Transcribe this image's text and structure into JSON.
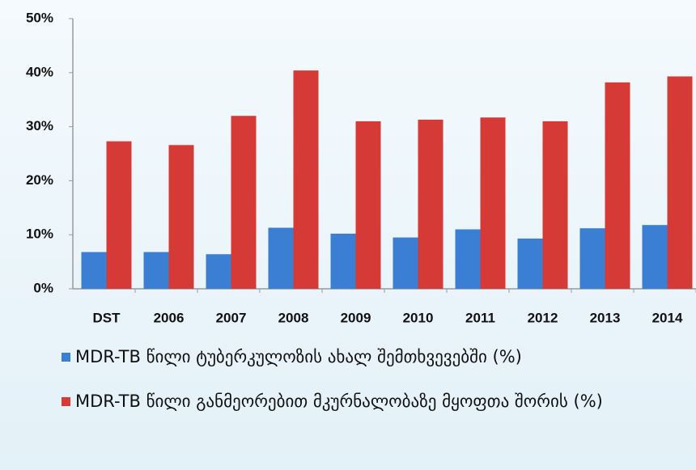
{
  "chart_data": {
    "type": "bar",
    "categories": [
      "DST",
      "2006",
      "2007",
      "2008",
      "2009",
      "2010",
      "2011",
      "2012",
      "2013",
      "2014"
    ],
    "series": [
      {
        "name": "MDR-TB წილი ტუბერკულოზის ახალ შემთხვევებში (%)",
        "color": "#3b7fd4",
        "values": [
          6.8,
          6.8,
          6.4,
          11.3,
          10.2,
          9.5,
          11,
          9.3,
          11.2,
          11.8
        ]
      },
      {
        "name": "MDR-TB წილი განმეორებით მკურნალობაზე მყოფთა შორის (%)",
        "color": "#d63a36",
        "values": [
          27.3,
          26.6,
          32,
          40.4,
          31,
          31.3,
          31.7,
          31,
          38.2,
          39.3
        ]
      }
    ],
    "ylim": [
      0,
      50
    ],
    "yticks": [
      {
        "value": 0,
        "label": "0%"
      },
      {
        "value": 10,
        "label": "10%"
      },
      {
        "value": 20,
        "label": "20%"
      },
      {
        "value": 30,
        "label": "30%"
      },
      {
        "value": 40,
        "label": "40%"
      },
      {
        "value": 50,
        "label": "50%"
      }
    ],
    "grid": false
  }
}
